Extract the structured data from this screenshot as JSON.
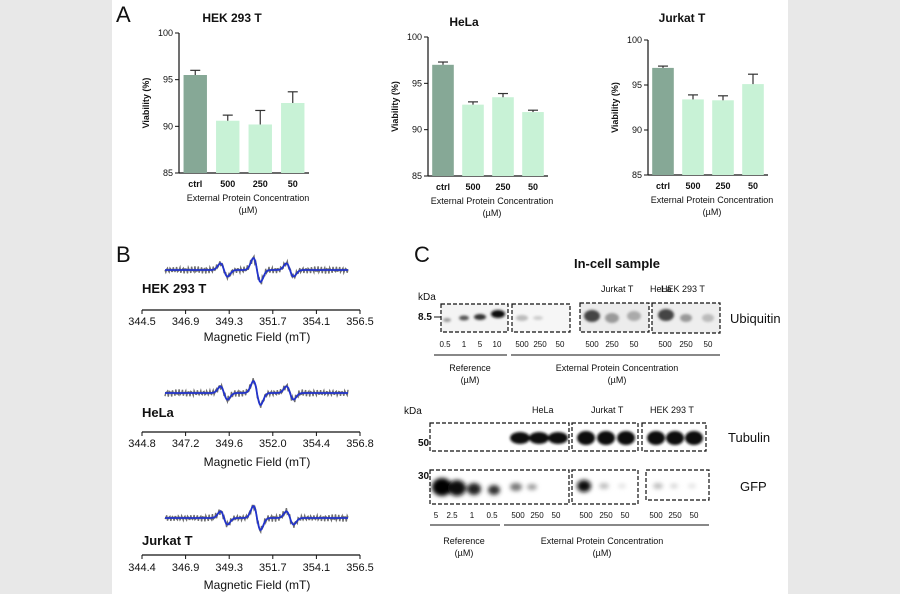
{
  "panels": {
    "A": {
      "letter": "A",
      "charts": [
        {
          "title": "HEK 293 T",
          "ylabel": "Viability (%)",
          "yticks": [
            "85",
            "90",
            "95",
            "100"
          ],
          "categories": [
            "ctrl",
            "500",
            "250",
            "50"
          ],
          "xlabel_line1": "External Protein Concentration",
          "xlabel_line2": "(µM)"
        },
        {
          "title": "HeLa",
          "ylabel": "Viability (%)",
          "yticks": [
            "85",
            "90",
            "95",
            "100"
          ],
          "categories": [
            "ctrl",
            "500",
            "250",
            "50"
          ],
          "xlabel_line1": "External Protein Concentration",
          "xlabel_line2": "(µM)"
        },
        {
          "title": "Jurkat T",
          "ylabel": "Viability (%)",
          "yticks": [
            "85",
            "90",
            "95",
            "100"
          ],
          "categories": [
            "ctrl",
            "500",
            "250",
            "50"
          ],
          "xlabel_line1": "External Protein Concentration",
          "xlabel_line2": "(µM)"
        }
      ]
    },
    "B": {
      "letter": "B",
      "xlabel": "Magnetic Field (mT)",
      "spectra": [
        {
          "label": "HEK 293 T",
          "ticks": [
            "344.5",
            "346.9",
            "349.3",
            "351.7",
            "354.1",
            "356.5"
          ]
        },
        {
          "label": "HeLa",
          "ticks": [
            "344.8",
            "347.2",
            "349.6",
            "352.0",
            "354.4",
            "356.8"
          ]
        },
        {
          "label": "Jurkat T",
          "ticks": [
            "344.4",
            "346.9",
            "349.3",
            "351.7",
            "354.1",
            "356.5"
          ]
        }
      ]
    },
    "C": {
      "letter": "C",
      "title": "In-cell sample",
      "kda": "kDa",
      "blot1": {
        "marker": "8.5",
        "protein": "Ubiquitin",
        "ref_lanes": [
          "0.5",
          "1",
          "5",
          "10"
        ],
        "groups": [
          "HeLa",
          "Jurkat T",
          "HEK 293 T"
        ],
        "conc_lanes": [
          "500",
          "250",
          "50"
        ]
      },
      "blot2": {
        "marker_tubulin": "50",
        "marker_gfp": "30",
        "protein_tubulin": "Tubulin",
        "protein_gfp": "GFP",
        "ref_lanes": [
          "5",
          "2.5",
          "1",
          "0.5"
        ],
        "groups": [
          "HeLa",
          "Jurkat T",
          "HEK 293 T"
        ],
        "conc_lanes": [
          "500",
          "250",
          "50"
        ]
      },
      "reference_label_line1": "Reference",
      "reference_label_line2": "(µM)",
      "external_label_line1": "External Protein Concentration",
      "external_label_line2": "(µM)"
    }
  },
  "chart_data": [
    {
      "type": "bar",
      "title": "HEK 293 T",
      "categories": [
        "ctrl",
        "500",
        "250",
        "50"
      ],
      "values": [
        95.5,
        90.6,
        90.2,
        92.5
      ],
      "errors": [
        0.5,
        0.6,
        1.5,
        1.2
      ],
      "ylabel": "Viability (%)",
      "xlabel": "External Protein Concentration (µM)",
      "ylim": [
        85,
        100
      ],
      "colors": [
        "#86a896",
        "#c8f2d6",
        "#c8f2d6",
        "#c8f2d6"
      ]
    },
    {
      "type": "bar",
      "title": "HeLa",
      "categories": [
        "ctrl",
        "500",
        "250",
        "50"
      ],
      "values": [
        97.0,
        92.7,
        93.5,
        91.9
      ],
      "errors": [
        0.3,
        0.3,
        0.4,
        0.2
      ],
      "ylabel": "Viability (%)",
      "xlabel": "External Protein Concentration (µM)",
      "ylim": [
        85,
        100
      ],
      "colors": [
        "#86a896",
        "#c8f2d6",
        "#c8f2d6",
        "#c8f2d6"
      ]
    },
    {
      "type": "bar",
      "title": "Jurkat T",
      "categories": [
        "ctrl",
        "500",
        "250",
        "50"
      ],
      "values": [
        96.9,
        93.4,
        93.3,
        95.1
      ],
      "errors": [
        0.2,
        0.5,
        0.5,
        1.1
      ],
      "ylabel": "Viability (%)",
      "xlabel": "External Protein Concentration (µM)",
      "ylim": [
        85,
        100
      ],
      "colors": [
        "#86a896",
        "#c8f2d6",
        "#c8f2d6",
        "#c8f2d6"
      ]
    }
  ]
}
